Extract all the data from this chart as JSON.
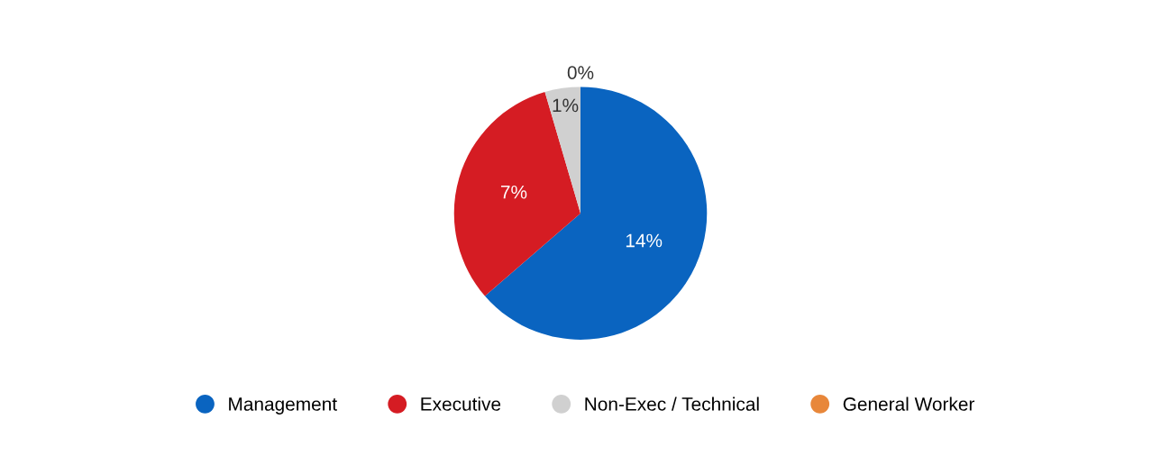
{
  "chart_data": {
    "type": "pie",
    "categories": [
      "Management",
      "Executive",
      "Non-Exec / Technical",
      "General Worker"
    ],
    "values": [
      14,
      7,
      1,
      0
    ],
    "value_labels": [
      "14%",
      "7%",
      "1%",
      "0%"
    ],
    "colors": [
      "#0a64c0",
      "#d51c23",
      "#d0d0d0",
      "#e8873a"
    ],
    "legend": "bottom"
  }
}
